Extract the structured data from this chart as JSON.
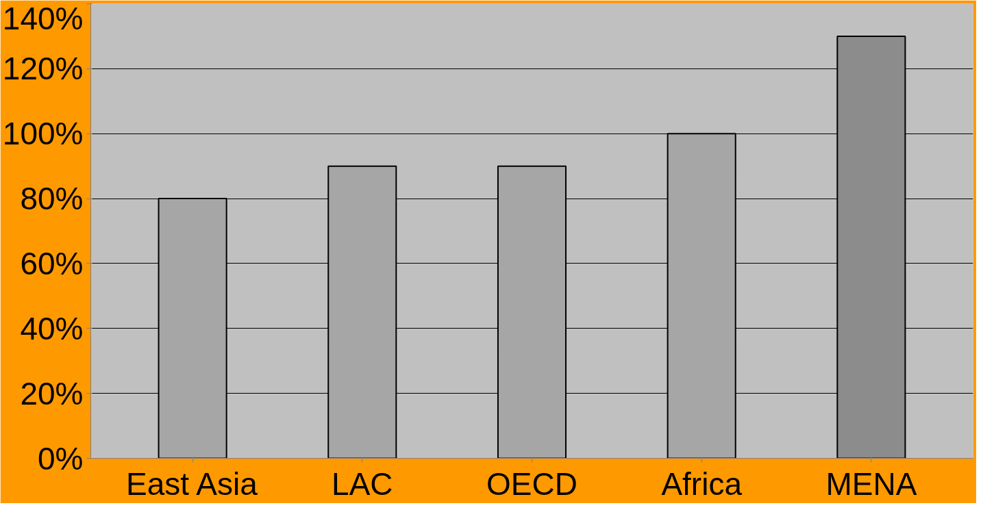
{
  "chart_data": {
    "type": "bar",
    "categories": [
      "East Asia",
      "LAC",
      "OECD",
      "Africa",
      "MENA"
    ],
    "values": [
      80,
      90,
      90,
      100,
      130
    ],
    "colors": [
      "#a6a6a6",
      "#a6a6a6",
      "#a6a6a6",
      "#a6a6a6",
      "#8c8c8c"
    ],
    "ylim": [
      0,
      140
    ],
    "yticks": [
      {
        "value": 0,
        "label": "0%"
      },
      {
        "value": 20,
        "label": "20%"
      },
      {
        "value": 40,
        "label": "40%"
      },
      {
        "value": 60,
        "label": "60%"
      },
      {
        "value": 80,
        "label": "80%"
      },
      {
        "value": 100,
        "label": "100%"
      },
      {
        "value": 120,
        "label": "120%"
      },
      {
        "value": 140,
        "label": "140%"
      }
    ],
    "grid": "y"
  }
}
